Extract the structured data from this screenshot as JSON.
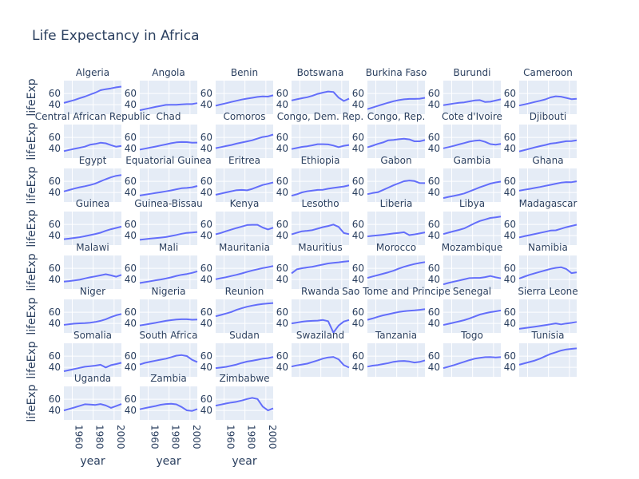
{
  "chart_data": {
    "type": "line",
    "title": "Life Expectancy in Africa",
    "xlabel": "year",
    "ylabel": "lifeExp",
    "x": [
      1952,
      1957,
      1962,
      1967,
      1972,
      1977,
      1982,
      1987,
      1992,
      1997,
      2002,
      2007
    ],
    "xlim": [
      1952,
      2007
    ],
    "ylim": [
      23,
      83
    ],
    "xticks": [
      1960,
      1980,
      2000
    ],
    "yticks": [
      40,
      60
    ],
    "grid": true,
    "line_color": "#636efa",
    "panel_color": "#e5ecf6",
    "series": [
      {
        "name": "Algeria",
        "values": [
          43.1,
          45.7,
          48.3,
          51.4,
          54.5,
          58.0,
          61.4,
          65.8,
          67.7,
          69.2,
          71.0,
          72.3
        ]
      },
      {
        "name": "Angola",
        "values": [
          30.0,
          32.0,
          34.0,
          36.0,
          37.9,
          39.5,
          39.9,
          39.9,
          40.6,
          41.0,
          41.0,
          42.7
        ]
      },
      {
        "name": "Benin",
        "values": [
          38.2,
          40.4,
          42.6,
          44.9,
          47.0,
          49.2,
          50.9,
          52.3,
          53.9,
          54.8,
          54.4,
          56.7
        ]
      },
      {
        "name": "Botswana",
        "values": [
          47.6,
          49.6,
          51.5,
          53.3,
          56.0,
          59.3,
          61.5,
          63.6,
          62.7,
          52.6,
          46.6,
          50.7
        ]
      },
      {
        "name": "Burkina Faso",
        "values": [
          32.0,
          34.9,
          37.8,
          40.7,
          43.6,
          46.1,
          48.1,
          49.6,
          50.3,
          50.3,
          50.7,
          52.3
        ]
      },
      {
        "name": "Burundi",
        "values": [
          39.0,
          40.5,
          42.0,
          43.5,
          44.1,
          45.9,
          47.5,
          48.2,
          44.7,
          45.3,
          47.4,
          49.6
        ]
      },
      {
        "name": "Cameroon",
        "values": [
          38.5,
          40.4,
          42.6,
          44.8,
          47.0,
          49.4,
          53.0,
          55.0,
          54.3,
          52.2,
          49.9,
          50.4
        ]
      },
      {
        "name": "Central African Republic",
        "values": [
          35.5,
          37.5,
          39.5,
          41.5,
          43.5,
          46.8,
          48.3,
          50.5,
          49.4,
          46.1,
          43.3,
          44.7
        ]
      },
      {
        "name": "Chad",
        "values": [
          38.1,
          39.9,
          41.7,
          43.6,
          45.6,
          47.4,
          49.5,
          51.1,
          51.7,
          51.6,
          50.5,
          50.7
        ]
      },
      {
        "name": "Comoros",
        "values": [
          40.7,
          42.5,
          44.5,
          46.5,
          48.9,
          50.9,
          52.9,
          54.9,
          57.9,
          60.7,
          62.2,
          65.2
        ]
      },
      {
        "name": "Congo, Dem. Rep.",
        "values": [
          39.1,
          41.0,
          43.0,
          44.1,
          45.9,
          47.8,
          47.8,
          47.4,
          45.5,
          42.6,
          45.0,
          46.5
        ]
      },
      {
        "name": "Congo, Rep.",
        "values": [
          42.1,
          45.1,
          48.4,
          51.0,
          54.9,
          55.6,
          56.7,
          57.5,
          56.4,
          52.96,
          52.97,
          55.3
        ]
      },
      {
        "name": "Cote d'Ivoire",
        "values": [
          40.5,
          42.5,
          44.9,
          47.4,
          49.8,
          52.4,
          53.98,
          54.7,
          52.0,
          47.99,
          46.8,
          48.3
        ]
      },
      {
        "name": "Djibouti",
        "values": [
          34.8,
          37.3,
          39.7,
          42.1,
          44.4,
          46.5,
          48.8,
          50.0,
          51.6,
          53.2,
          53.4,
          54.8
        ]
      },
      {
        "name": "Egypt",
        "values": [
          41.9,
          44.4,
          47.0,
          49.3,
          51.1,
          53.3,
          56.0,
          59.8,
          63.7,
          67.2,
          69.8,
          71.3
        ]
      },
      {
        "name": "Equatorial Guinea",
        "values": [
          34.5,
          35.98,
          37.5,
          38.99,
          40.5,
          42.0,
          43.7,
          45.7,
          47.5,
          48.2,
          49.3,
          51.6
        ]
      },
      {
        "name": "Eritrea",
        "values": [
          35.9,
          38.0,
          40.2,
          42.2,
          44.1,
          44.5,
          43.9,
          46.5,
          49.99,
          53.4,
          55.6,
          58.0
        ]
      },
      {
        "name": "Ethiopia",
        "values": [
          34.1,
          36.7,
          40.1,
          42.1,
          43.5,
          44.5,
          44.9,
          46.7,
          48.1,
          49.4,
          50.7,
          52.9
        ]
      },
      {
        "name": "Gabon",
        "values": [
          37.0,
          38.99,
          40.5,
          44.6,
          48.7,
          52.8,
          56.6,
          60.2,
          61.4,
          60.5,
          56.8,
          56.7
        ]
      },
      {
        "name": "Gambia",
        "values": [
          30.0,
          32.1,
          33.9,
          35.9,
          38.3,
          41.8,
          45.6,
          49.3,
          52.6,
          55.9,
          58.0,
          59.4
        ]
      },
      {
        "name": "Ghana",
        "values": [
          43.1,
          44.8,
          46.5,
          48.1,
          49.9,
          51.8,
          53.7,
          55.7,
          57.5,
          58.6,
          58.5,
          60.0
        ]
      },
      {
        "name": "Guinea",
        "values": [
          33.6,
          34.6,
          35.8,
          37.2,
          38.8,
          40.8,
          42.9,
          45.2,
          48.6,
          51.5,
          53.7,
          56.0
        ]
      },
      {
        "name": "Guinea-Bissau",
        "values": [
          32.5,
          33.5,
          34.5,
          35.5,
          36.5,
          37.5,
          39.3,
          41.2,
          43.3,
          44.9,
          45.5,
          46.4
        ]
      },
      {
        "name": "Kenya",
        "values": [
          42.3,
          44.7,
          47.9,
          50.7,
          53.6,
          56.2,
          58.8,
          59.3,
          59.3,
          54.4,
          50.99,
          54.1
        ]
      },
      {
        "name": "Lesotho",
        "values": [
          42.1,
          45.0,
          47.7,
          48.5,
          49.8,
          52.5,
          55.1,
          57.2,
          59.7,
          55.6,
          44.6,
          42.6
        ]
      },
      {
        "name": "Liberia",
        "values": [
          38.5,
          39.5,
          40.5,
          41.5,
          42.6,
          43.8,
          44.9,
          46.0,
          40.8,
          42.2,
          43.8,
          45.7
        ]
      },
      {
        "name": "Libya",
        "values": [
          42.7,
          45.3,
          47.8,
          50.2,
          52.8,
          57.4,
          62.2,
          66.2,
          68.8,
          71.6,
          72.7,
          74.0
        ]
      },
      {
        "name": "Madagascar",
        "values": [
          36.7,
          38.9,
          40.8,
          42.9,
          44.9,
          46.9,
          48.97,
          49.4,
          52.2,
          54.98,
          57.3,
          59.4
        ]
      },
      {
        "name": "Malawi",
        "values": [
          36.3,
          37.2,
          38.4,
          39.5,
          41.8,
          43.8,
          45.6,
          47.5,
          49.4,
          47.5,
          45.0,
          48.3
        ]
      },
      {
        "name": "Mali",
        "values": [
          33.7,
          35.3,
          36.9,
          38.5,
          40.0,
          41.7,
          43.9,
          46.4,
          48.4,
          49.9,
          51.8,
          54.5
        ]
      },
      {
        "name": "Mauritania",
        "values": [
          40.5,
          42.3,
          44.2,
          46.3,
          48.4,
          50.9,
          53.6,
          56.1,
          58.3,
          60.4,
          62.2,
          64.2
        ]
      },
      {
        "name": "Mauritius",
        "values": [
          50.99,
          58.1,
          60.2,
          61.6,
          62.9,
          64.9,
          66.7,
          68.7,
          69.7,
          70.7,
          71.95,
          72.8
        ]
      },
      {
        "name": "Morocco",
        "values": [
          42.9,
          45.4,
          47.9,
          50.3,
          52.9,
          55.7,
          59.6,
          62.7,
          65.4,
          67.7,
          69.6,
          71.2
        ]
      },
      {
        "name": "Mozambique",
        "values": [
          31.3,
          33.8,
          36.2,
          38.1,
          40.3,
          42.5,
          42.8,
          42.9,
          44.3,
          46.3,
          44.0,
          42.1
        ]
      },
      {
        "name": "Namibia",
        "values": [
          41.7,
          45.2,
          48.4,
          51.2,
          53.9,
          56.4,
          58.97,
          60.8,
          62.0,
          58.9,
          51.5,
          52.9
        ]
      },
      {
        "name": "Niger",
        "values": [
          37.4,
          38.6,
          39.5,
          40.1,
          40.5,
          41.3,
          42.6,
          44.6,
          47.4,
          51.3,
          54.5,
          56.9
        ]
      },
      {
        "name": "Nigeria",
        "values": [
          36.3,
          37.8,
          39.4,
          41.0,
          42.8,
          44.5,
          45.8,
          46.9,
          47.5,
          47.5,
          46.6,
          46.9
        ]
      },
      {
        "name": "Reunion",
        "values": [
          52.7,
          55.1,
          57.7,
          60.5,
          64.3,
          67.1,
          69.9,
          71.9,
          73.6,
          74.8,
          75.7,
          76.4
        ]
      },
      {
        "name": "Rwanda",
        "values": [
          40.0,
          41.5,
          43.0,
          44.1,
          44.6,
          45.0,
          46.2,
          44.0,
          23.6,
          36.1,
          43.4,
          46.2
        ]
      },
      {
        "name": "Sao Tome and Principe",
        "values": [
          46.5,
          48.9,
          51.9,
          54.4,
          56.5,
          58.6,
          60.4,
          61.7,
          62.7,
          63.3,
          64.3,
          65.5
        ]
      },
      {
        "name": "Senegal",
        "values": [
          37.3,
          39.3,
          41.5,
          43.6,
          45.8,
          48.9,
          52.4,
          55.8,
          58.2,
          60.2,
          61.6,
          63.1
        ]
      },
      {
        "name": "Sierra Leone",
        "values": [
          30.3,
          31.6,
          32.8,
          34.1,
          35.4,
          36.8,
          38.4,
          40.0,
          38.3,
          39.9,
          41.0,
          42.6
        ]
      },
      {
        "name": "Somalia",
        "values": [
          32.98,
          34.98,
          36.98,
          38.98,
          40.97,
          41.97,
          42.96,
          44.5,
          39.7,
          43.8,
          45.9,
          48.2
        ]
      },
      {
        "name": "South Africa",
        "values": [
          45.0,
          48.0,
          49.95,
          51.9,
          53.7,
          55.5,
          58.2,
          60.8,
          61.9,
          60.2,
          53.4,
          49.3
        ]
      },
      {
        "name": "Sudan",
        "values": [
          38.6,
          39.6,
          40.9,
          42.9,
          44.99,
          47.8,
          50.3,
          51.7,
          53.6,
          55.4,
          56.4,
          58.6
        ]
      },
      {
        "name": "Swaziland",
        "values": [
          41.4,
          43.4,
          45.0,
          46.6,
          49.6,
          52.5,
          55.6,
          57.7,
          58.5,
          54.3,
          43.9,
          39.6
        ]
      },
      {
        "name": "Tanzania",
        "values": [
          41.2,
          42.97,
          44.2,
          45.8,
          47.6,
          49.9,
          51.0,
          51.5,
          50.4,
          48.5,
          49.7,
          52.5
        ]
      },
      {
        "name": "Togo",
        "values": [
          38.6,
          41.2,
          43.9,
          46.8,
          49.8,
          52.9,
          55.5,
          56.9,
          58.1,
          58.4,
          57.6,
          58.4
        ]
      },
      {
        "name": "Tunisia",
        "values": [
          44.6,
          47.1,
          49.6,
          52.1,
          55.6,
          59.8,
          64.0,
          66.9,
          70.0,
          71.97,
          73.0,
          73.9
        ]
      },
      {
        "name": "Uganda",
        "values": [
          39.98,
          42.6,
          45.3,
          48.1,
          51.0,
          50.4,
          49.8,
          51.5,
          48.8,
          44.6,
          47.8,
          51.5
        ]
      },
      {
        "name": "Zambia",
        "values": [
          42.0,
          44.1,
          46.0,
          47.8,
          50.1,
          51.4,
          51.8,
          50.8,
          46.1,
          40.2,
          39.2,
          42.4
        ]
      },
      {
        "name": "Zimbabwe",
        "values": [
          48.5,
          50.5,
          52.4,
          54.1,
          55.6,
          57.7,
          60.4,
          62.4,
          60.4,
          46.8,
          39.99,
          43.5
        ]
      }
    ]
  }
}
